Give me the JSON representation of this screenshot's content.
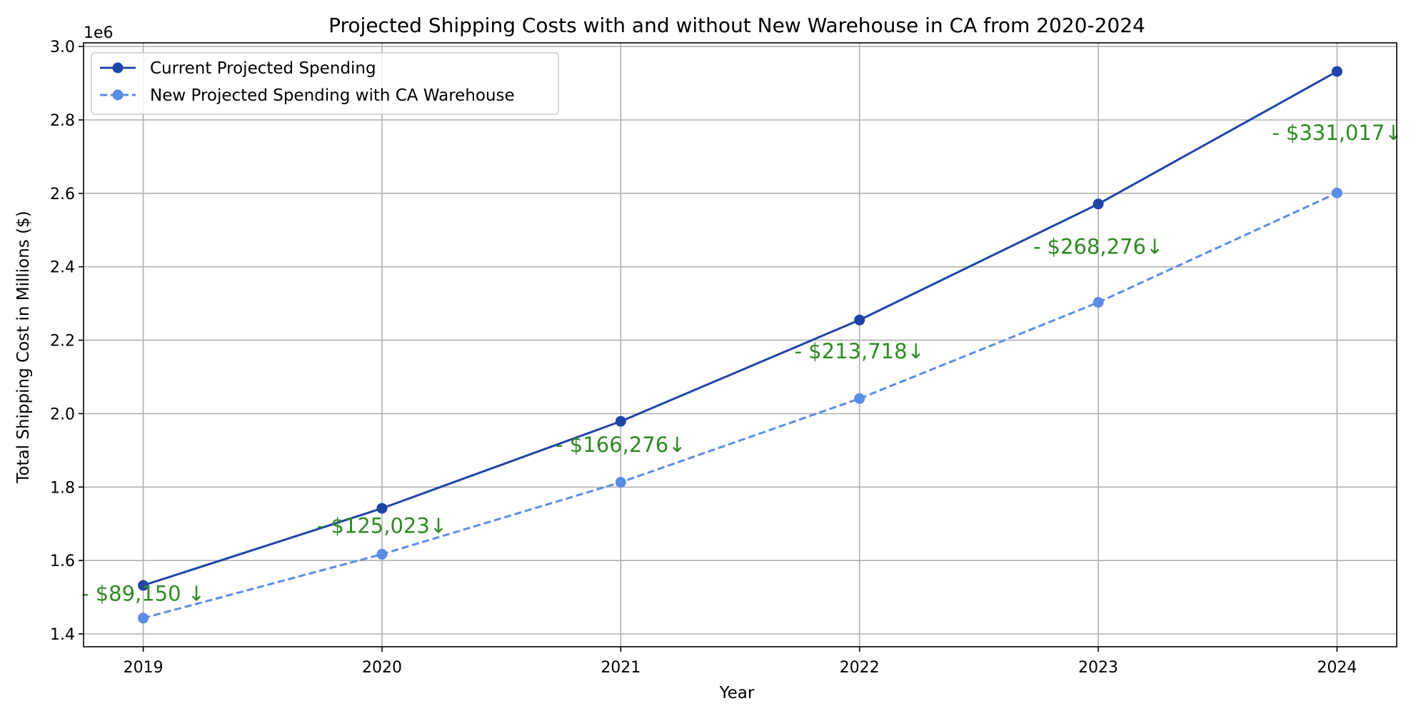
{
  "chart_data": {
    "type": "line",
    "title": "Projected Shipping Costs with and without New Warehouse in CA from 2020-2024",
    "xlabel": "Year",
    "ylabel": "Total Shipping Cost in Millions ($)",
    "y_offset_label": "1e6",
    "x": [
      2019,
      2020,
      2021,
      2022,
      2023,
      2024
    ],
    "x_tick_labels": [
      "2019",
      "2020",
      "2021",
      "2022",
      "2023",
      "2024"
    ],
    "xlim": [
      2018.75,
      2024.25
    ],
    "ylim": [
      1.365,
      3.01
    ],
    "y_ticks": [
      1.4,
      1.6,
      1.8,
      2.0,
      2.2,
      2.4,
      2.6,
      2.8,
      3.0
    ],
    "y_tick_labels": [
      "1.4",
      "1.6",
      "1.8",
      "2.0",
      "2.2",
      "2.4",
      "2.6",
      "2.8",
      "3.0"
    ],
    "y_scale_note": "values in units of 1e6",
    "grid": true,
    "legend_position": "top-left",
    "series": [
      {
        "name": "Current Projected Spending",
        "values": [
          1.532,
          1.742,
          1.979,
          2.255,
          2.571,
          2.932
        ],
        "color": "#1f45a8",
        "line_style": "solid",
        "marker": "circle"
      },
      {
        "name": "New Projected Spending with CA Warehouse",
        "values": [
          1.443,
          1.617,
          1.813,
          2.041,
          2.303,
          2.601
        ],
        "color": "#5a8ee6",
        "line_style": "dashed",
        "marker": "circle"
      }
    ],
    "annotations": [
      {
        "text": "- $89,150 ↓",
        "x": 2019,
        "y": 1.51
      },
      {
        "text": "- $125,023↓",
        "x": 2020,
        "y": 1.695
      },
      {
        "text": "- $166,276↓",
        "x": 2021,
        "y": 1.915
      },
      {
        "text": "- $213,718↓",
        "x": 2022,
        "y": 2.17
      },
      {
        "text": "- $268,276↓",
        "x": 2023,
        "y": 2.455
      },
      {
        "text": "- $331,017↓",
        "x": 2024,
        "y": 2.765
      }
    ],
    "annotation_color": "#2e8b22"
  }
}
